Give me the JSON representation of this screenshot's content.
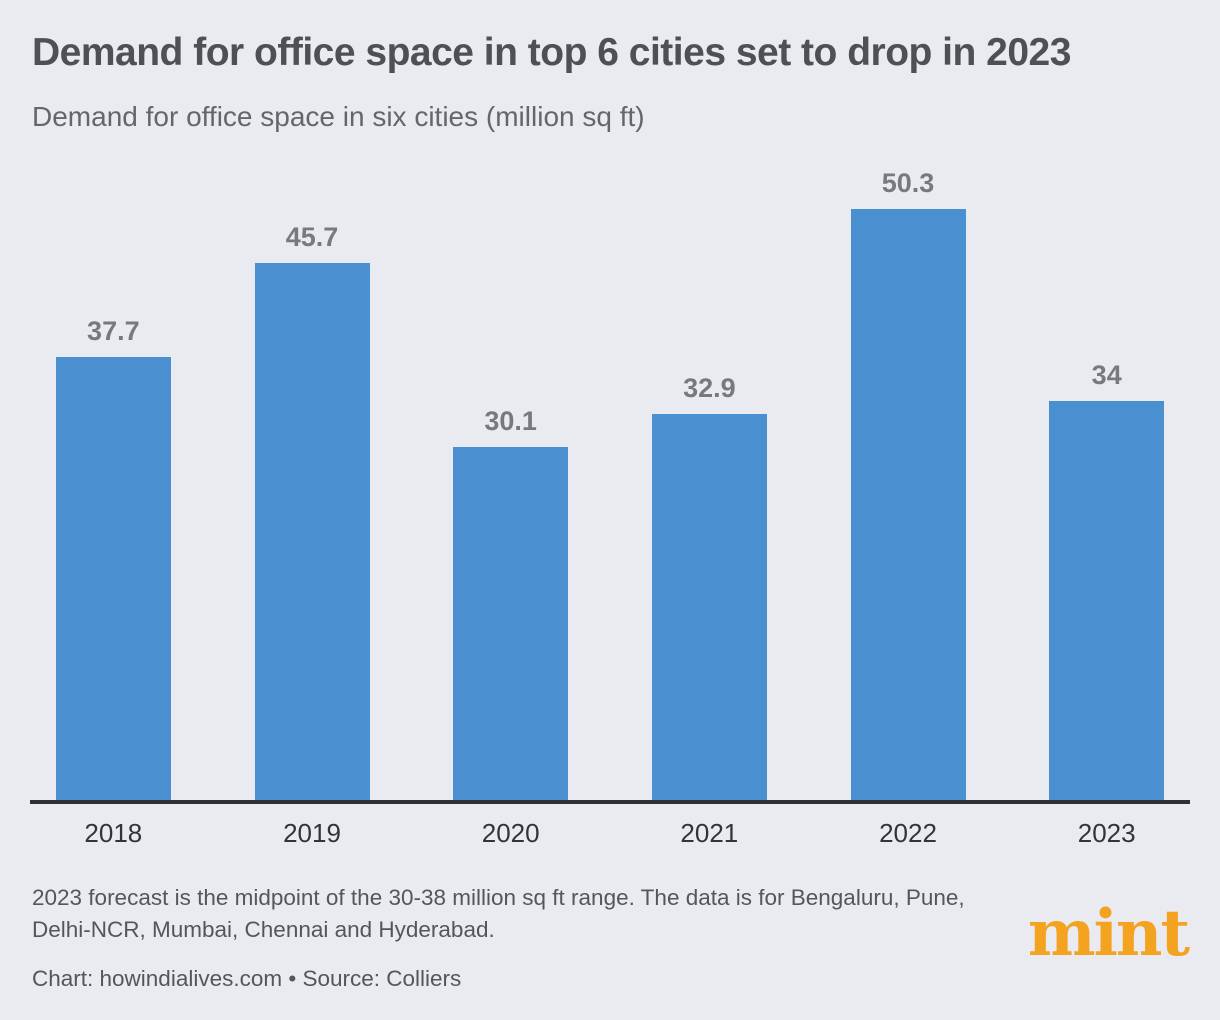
{
  "header": {
    "title": "Demand for office space in top 6 cities set to drop in 2023",
    "subtitle": "Demand for office space in six cities (million sq ft)"
  },
  "chart_data": {
    "type": "bar",
    "title": "Demand for office space in top 6 cities set to drop in 2023",
    "subtitle": "Demand for office space in six cities (million sq ft)",
    "categories": [
      "2018",
      "2019",
      "2020",
      "2021",
      "2022",
      "2023"
    ],
    "values": [
      37.7,
      45.7,
      30.1,
      32.9,
      50.3,
      34
    ],
    "value_labels": [
      "37.7",
      "45.7",
      "30.1",
      "32.9",
      "50.3",
      "34"
    ],
    "xlabel": "",
    "ylabel": "million sq ft",
    "ylim": [
      0,
      54.5
    ],
    "grid": false,
    "legend": "none",
    "bar_color": "#4a90d0"
  },
  "footer": {
    "note": "2023 forecast is the midpoint of the 30-38 million sq ft range. The data is for Bengaluru, Pune, Delhi-NCR, Mumbai, Chennai and Hyderabad.",
    "credit": "Chart: howindialives.com • Source: Colliers",
    "logo_text": "mint"
  },
  "colors": {
    "background": "#e9ebf0",
    "bar": "#4a90d0",
    "axis_line": "#2e3033",
    "title_text": "#4d5054",
    "subtitle_text": "#646669",
    "value_label_text": "#77797c",
    "x_label_text": "#323438",
    "note_text": "#54565a",
    "logo_orange": "#f4a321"
  }
}
